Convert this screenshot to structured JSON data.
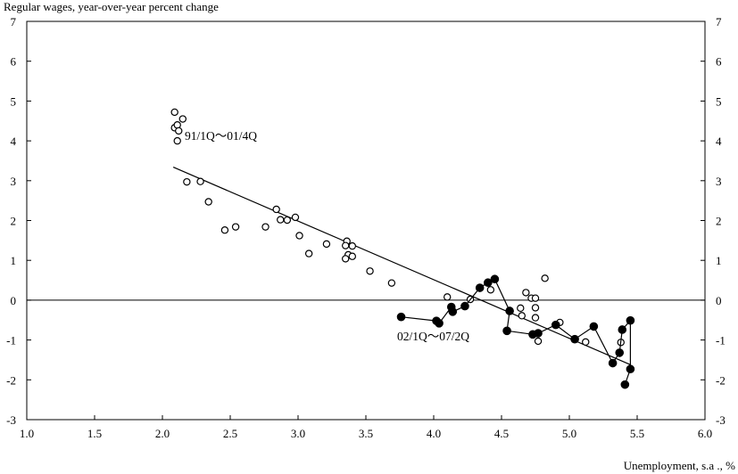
{
  "chart_data": {
    "type": "scatter",
    "ylabel": "Regular wages, year-over-year percent change",
    "xlabel": "Unemployment,   s.a ., %",
    "xlim": [
      1.0,
      6.0
    ],
    "ylim": [
      -3,
      7
    ],
    "xticks": [
      "1.0",
      "1.5",
      "2.0",
      "2.5",
      "3.0",
      "3.5",
      "4.0",
      "4.5",
      "5.0",
      "5.5",
      "6.0"
    ],
    "yticks": [
      "7",
      "6",
      "5",
      "4",
      "3",
      "2",
      "1",
      "0",
      "-1",
      "-2",
      "-3"
    ],
    "grid": false,
    "annotations": [
      {
        "text": "91/1Q～01/4Q"
      },
      {
        "text": "02/1Q～07/2Q"
      }
    ],
    "series": [
      {
        "marker": "open-circle",
        "points": [
          [
            2.09,
            4.72
          ],
          [
            2.09,
            4.33
          ],
          [
            2.11,
            4.4
          ],
          [
            2.12,
            4.25
          ],
          [
            2.15,
            4.55
          ],
          [
            2.11,
            4.0
          ],
          [
            2.18,
            2.97
          ],
          [
            2.28,
            2.98
          ],
          [
            2.34,
            2.47
          ],
          [
            2.46,
            1.76
          ],
          [
            2.54,
            1.84
          ],
          [
            2.76,
            1.84
          ],
          [
            2.84,
            2.28
          ],
          [
            2.87,
            2.02
          ],
          [
            2.92,
            2.01
          ],
          [
            2.98,
            2.08
          ],
          [
            3.01,
            1.62
          ],
          [
            3.08,
            1.17
          ],
          [
            3.21,
            1.41
          ],
          [
            3.36,
            1.48
          ],
          [
            3.35,
            1.37
          ],
          [
            3.37,
            1.14
          ],
          [
            3.4,
            1.36
          ],
          [
            3.4,
            1.1
          ],
          [
            3.35,
            1.04
          ],
          [
            3.53,
            0.73
          ],
          [
            3.69,
            0.43
          ],
          [
            4.1,
            0.08
          ],
          [
            4.27,
            0.02
          ],
          [
            4.42,
            0.26
          ],
          [
            4.68,
            0.19
          ],
          [
            4.72,
            0.05
          ],
          [
            4.75,
            0.05
          ],
          [
            4.82,
            0.55
          ],
          [
            4.64,
            -0.2
          ],
          [
            4.65,
            -0.39
          ],
          [
            4.75,
            -0.19
          ],
          [
            4.75,
            -0.44
          ],
          [
            4.77,
            -1.03
          ],
          [
            4.93,
            -0.56
          ],
          [
            5.12,
            -1.05
          ],
          [
            5.38,
            -1.06
          ]
        ]
      },
      {
        "marker": "filled-circle",
        "connected": true,
        "points": [
          [
            3.76,
            -0.42
          ],
          [
            4.02,
            -0.52
          ],
          [
            4.04,
            -0.58
          ],
          [
            4.13,
            -0.17
          ],
          [
            4.14,
            -0.29
          ],
          [
            4.23,
            -0.15
          ],
          [
            4.34,
            0.31
          ],
          [
            4.4,
            0.44
          ],
          [
            4.45,
            0.53
          ],
          [
            4.56,
            -0.27
          ],
          [
            4.54,
            -0.77
          ],
          [
            4.73,
            -0.86
          ],
          [
            4.77,
            -0.83
          ],
          [
            4.9,
            -0.62
          ],
          [
            5.04,
            -0.98
          ],
          [
            5.18,
            -0.66
          ],
          [
            5.32,
            -1.58
          ],
          [
            5.37,
            -1.32
          ],
          [
            5.39,
            -0.74
          ],
          [
            5.45,
            -0.51
          ],
          [
            5.45,
            -1.73
          ],
          [
            5.41,
            -2.12
          ]
        ]
      }
    ],
    "trendline": {
      "x": [
        2.08,
        5.45
      ],
      "y": [
        3.34,
        -1.62
      ]
    }
  }
}
